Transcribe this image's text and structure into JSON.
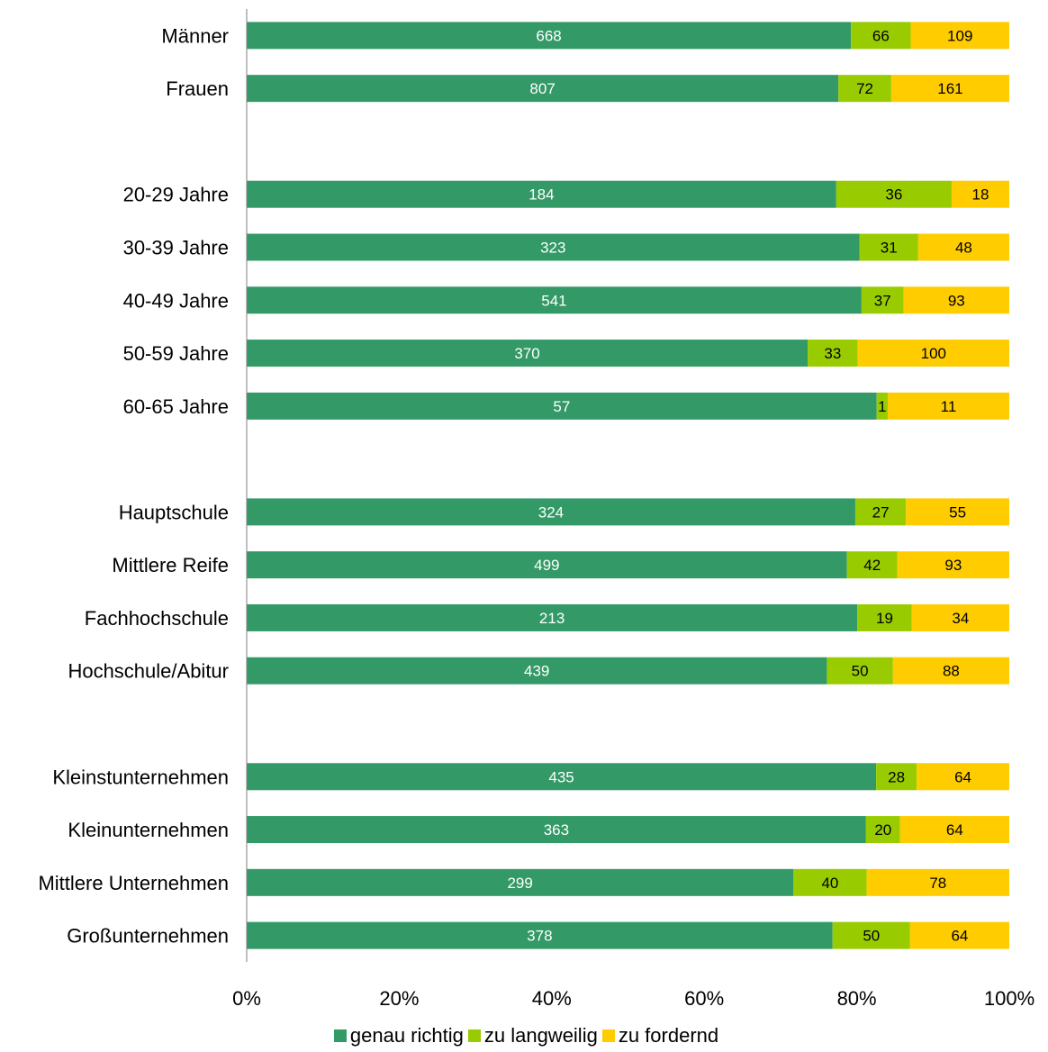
{
  "chart_data": {
    "type": "bar",
    "orientation": "horizontal",
    "stacked": "percent",
    "categories": [
      "Männer",
      "Frauen",
      "",
      "20-29 Jahre",
      "30-39 Jahre",
      "40-49 Jahre",
      "50-59 Jahre",
      "60-65 Jahre",
      "",
      "Hauptschule",
      "Mittlere Reife",
      "Fachhochschule",
      "Hochschule/Abitur",
      "",
      "Kleinstunternehmen",
      "Kleinunternehmen",
      "Mittlere Unternehmen",
      "Großunternehmen"
    ],
    "series": [
      {
        "name": "genau richtig",
        "color": "#339966",
        "label_color": "#ffffff",
        "values": [
          668,
          807,
          null,
          184,
          323,
          541,
          370,
          57,
          null,
          324,
          499,
          213,
          439,
          null,
          435,
          363,
          299,
          378
        ]
      },
      {
        "name": "zu langweilig",
        "color": "#99cc00",
        "label_color": "#000000",
        "values": [
          66,
          72,
          null,
          36,
          31,
          37,
          33,
          1,
          null,
          27,
          42,
          19,
          50,
          null,
          28,
          20,
          40,
          50
        ]
      },
      {
        "name": "zu fordernd",
        "color": "#ffcc00",
        "label_color": "#000000",
        "values": [
          109,
          161,
          null,
          18,
          48,
          93,
          100,
          11,
          null,
          55,
          93,
          34,
          88,
          null,
          64,
          64,
          78,
          64
        ]
      }
    ],
    "x_ticks": [
      "0%",
      "20%",
      "40%",
      "60%",
      "80%",
      "100%"
    ],
    "xlim": [
      0,
      100
    ],
    "grid": false,
    "legend_position": "bottom"
  }
}
